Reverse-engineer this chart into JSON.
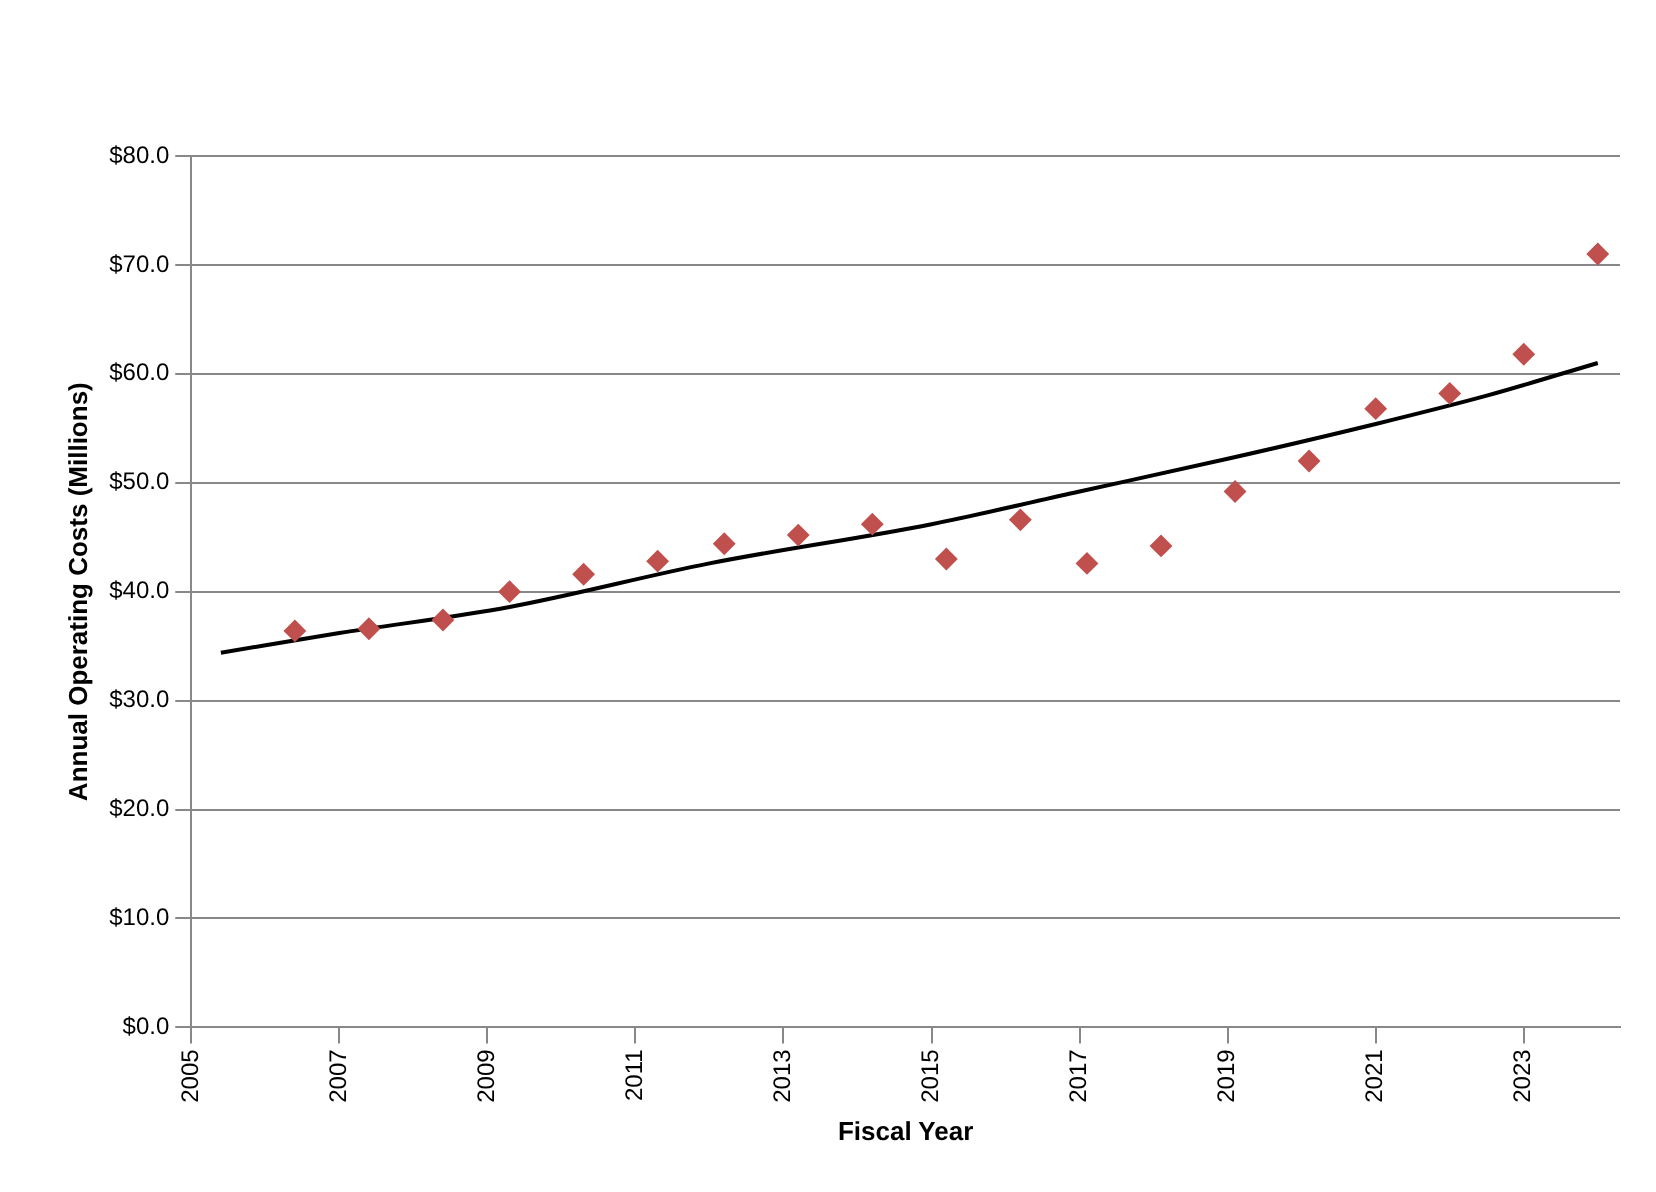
{
  "chart_data": {
    "type": "scatter",
    "xlabel": "Fiscal Year",
    "ylabel": "Annual Operating Costs (Millions)",
    "xlim": [
      2005,
      2024.3
    ],
    "xticks": [
      2005,
      2007,
      2009,
      2011,
      2013,
      2015,
      2017,
      2019,
      2021,
      2023
    ],
    "ylim": [
      0,
      80
    ],
    "yticks": [
      {
        "value": 0,
        "label": "$0.0"
      },
      {
        "value": 10,
        "label": "$10.0"
      },
      {
        "value": 20,
        "label": "$20.0"
      },
      {
        "value": 30,
        "label": "$30.0"
      },
      {
        "value": 40,
        "label": "$40.0"
      },
      {
        "value": 50,
        "label": "$50.0"
      },
      {
        "value": 60,
        "label": "$60.0"
      },
      {
        "value": 70,
        "label": "$70.0"
      },
      {
        "value": 80,
        "label": "$80.0"
      }
    ],
    "grid": "y",
    "legend": false,
    "marker": "diamond",
    "series": [
      {
        "color": "#c0504d",
        "x": [
          2006.4,
          2007.4,
          2008.4,
          2009.3,
          2010.3,
          2011.3,
          2012.2,
          2013.2,
          2014.2,
          2015.2,
          2016.2,
          2017.1,
          2018.1,
          2019.1,
          2020.1,
          2021.0,
          2022.0,
          2023.0,
          2024.0
        ],
        "values": [
          36.4,
          36.6,
          37.4,
          40.0,
          41.6,
          42.8,
          44.4,
          45.2,
          46.2,
          43.0,
          46.6,
          42.6,
          44.2,
          49.2,
          52.0,
          56.8,
          58.2,
          61.8,
          71.0
        ]
      },
      {
        "type": "line",
        "color": "#000000",
        "marker": "none",
        "x": [
          2005.4,
          2007,
          2009.3,
          2012,
          2015,
          2017,
          2019,
          2021,
          2022.5,
          2024.0
        ],
        "values": [
          34.4,
          36.2,
          38.6,
          42.6,
          46.2,
          49.2,
          52.2,
          55.4,
          58.0,
          61.0
        ]
      }
    ]
  }
}
